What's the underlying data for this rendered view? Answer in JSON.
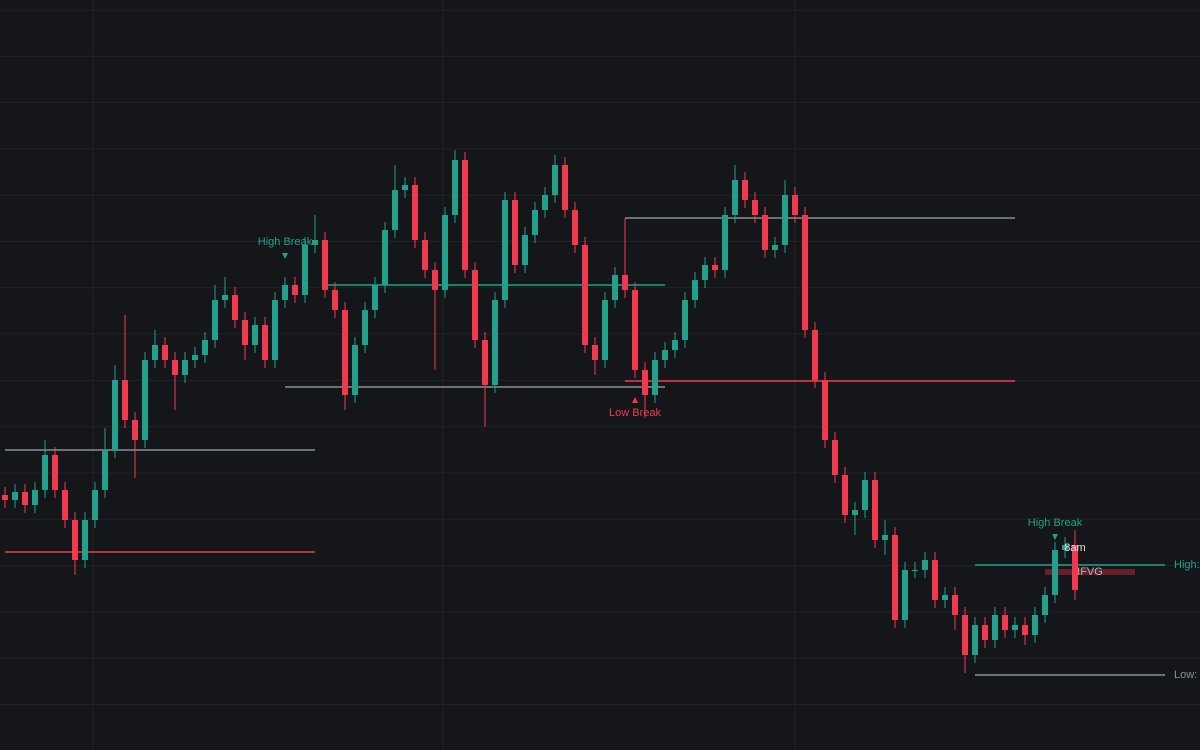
{
  "chart_data": {
    "type": "candlestick",
    "ylim": [
      0,
      750
    ],
    "up_color": "#22a08c",
    "down_color": "#f0394f",
    "grid": true,
    "open": [
      255,
      250,
      258,
      245,
      260,
      295,
      260,
      230,
      190,
      230,
      260,
      300,
      370,
      330,
      310,
      390,
      405,
      390,
      375,
      390,
      395,
      410,
      450,
      455,
      430,
      405,
      425,
      390,
      450,
      465,
      455,
      505,
      510,
      460,
      440,
      355,
      405,
      440,
      465,
      520,
      560,
      565,
      510,
      480,
      460,
      535,
      590,
      480,
      410,
      365,
      450,
      550,
      485,
      515,
      540,
      555,
      585,
      540,
      505,
      405,
      390,
      450,
      475,
      460,
      380,
      355,
      390,
      400,
      410,
      450,
      470,
      485,
      480,
      535,
      570,
      550,
      535,
      500,
      505,
      555,
      535,
      420,
      370,
      310,
      275,
      235,
      240,
      270,
      210,
      215,
      130,
      180,
      180,
      190,
      150,
      155,
      135,
      95,
      125,
      110,
      135,
      120,
      125,
      115,
      135,
      155,
      200,
      205
    ],
    "high": [
      263,
      266,
      266,
      268,
      310,
      303,
      268,
      238,
      238,
      268,
      322,
      385,
      435,
      338,
      398,
      420,
      413,
      398,
      398,
      403,
      418,
      465,
      473,
      463,
      438,
      433,
      433,
      458,
      473,
      473,
      513,
      535,
      518,
      468,
      448,
      413,
      448,
      473,
      528,
      585,
      573,
      573,
      518,
      488,
      543,
      600,
      598,
      488,
      418,
      458,
      558,
      558,
      523,
      548,
      563,
      595,
      593,
      548,
      513,
      413,
      458,
      483,
      532,
      468,
      388,
      398,
      408,
      418,
      458,
      478,
      493,
      493,
      543,
      585,
      578,
      558,
      543,
      513,
      570,
      563,
      543,
      428,
      378,
      318,
      283,
      248,
      278,
      278,
      230,
      223,
      188,
      188,
      198,
      198,
      163,
      163,
      143,
      133,
      133,
      143,
      143,
      133,
      133,
      143,
      163,
      208,
      213,
      220
    ],
    "low": [
      242,
      242,
      237,
      237,
      252,
      252,
      222,
      175,
      182,
      222,
      252,
      292,
      322,
      272,
      302,
      382,
      382,
      340,
      367,
      382,
      387,
      402,
      442,
      422,
      390,
      397,
      382,
      382,
      442,
      447,
      447,
      497,
      452,
      432,
      340,
      347,
      397,
      432,
      457,
      512,
      552,
      502,
      472,
      380,
      452,
      527,
      472,
      402,
      323,
      357,
      442,
      477,
      477,
      507,
      532,
      547,
      532,
      497,
      397,
      375,
      382,
      442,
      452,
      372,
      332,
      347,
      382,
      392,
      402,
      442,
      462,
      472,
      472,
      527,
      542,
      527,
      492,
      492,
      497,
      527,
      412,
      362,
      302,
      267,
      227,
      215,
      232,
      202,
      195,
      122,
      122,
      172,
      172,
      142,
      142,
      120,
      77,
      87,
      102,
      102,
      112,
      112,
      105,
      107,
      127,
      147,
      192,
      150
    ],
    "close": [
      250,
      258,
      245,
      260,
      295,
      260,
      230,
      190,
      230,
      260,
      300,
      370,
      330,
      310,
      390,
      405,
      390,
      375,
      390,
      395,
      410,
      450,
      455,
      430,
      405,
      425,
      390,
      450,
      465,
      455,
      505,
      510,
      460,
      440,
      355,
      405,
      440,
      465,
      520,
      560,
      565,
      510,
      480,
      460,
      535,
      590,
      480,
      410,
      365,
      450,
      550,
      485,
      515,
      540,
      555,
      585,
      540,
      505,
      405,
      390,
      450,
      475,
      460,
      380,
      355,
      390,
      400,
      410,
      450,
      470,
      485,
      480,
      535,
      570,
      550,
      535,
      500,
      505,
      555,
      535,
      420,
      370,
      310,
      275,
      235,
      240,
      270,
      210,
      215,
      130,
      180,
      180,
      190,
      150,
      155,
      135,
      95,
      125,
      110,
      135,
      120,
      125,
      115,
      135,
      155,
      200,
      205,
      160
    ],
    "levels": [
      {
        "value": 300,
        "from": 0,
        "to": 31,
        "color": "#8a8f98"
      },
      {
        "value": 198,
        "from": 0,
        "to": 31,
        "color": "#f0394f"
      },
      {
        "value": 465,
        "from": 32,
        "to": 66,
        "color": "#22a08c"
      },
      {
        "value": 363,
        "from": 28,
        "to": 66,
        "color": "#8a8f98"
      },
      {
        "value": 532,
        "from": 62,
        "to": 101,
        "color": "#8a8f98"
      },
      {
        "value": 369,
        "from": 62,
        "to": 101,
        "color": "#f0394f"
      },
      {
        "value": 185,
        "from": 97,
        "to": 116,
        "color": "#22a08c",
        "label": "High:"
      },
      {
        "value": 75,
        "from": 97,
        "to": 116,
        "color": "#8a8f98",
        "label": "Low:"
      }
    ],
    "annotations": [
      {
        "text": "High Break",
        "at": 28,
        "value": 494,
        "position": "above",
        "color": "#22a08c"
      },
      {
        "text": "Low Break",
        "at": 63,
        "value": 350,
        "position": "below",
        "color": "#f0394f"
      },
      {
        "text": "High Break",
        "at": 105,
        "value": 213,
        "position": "above",
        "color": "#22a08c"
      }
    ],
    "zone": {
      "text": "IFVG",
      "from": 104,
      "to": 113,
      "top": 181,
      "bottom": 175,
      "color": "#7a2230"
    },
    "session_label": {
      "text": "8am",
      "at": 107,
      "value": 202
    }
  }
}
